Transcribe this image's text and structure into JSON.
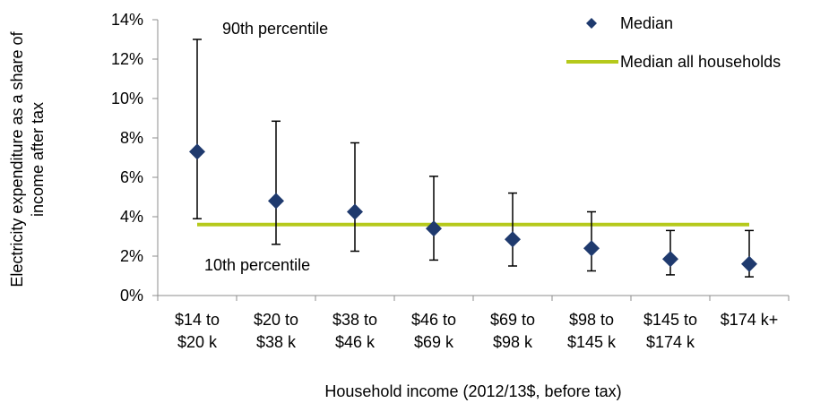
{
  "chart_data": {
    "type": "scatter",
    "ylabel_lines": [
      "Electricity expenditure as a share of",
      "income after tax"
    ],
    "xlabel": "Household income (2012/13$, before tax)",
    "categories": [
      [
        "$14 to",
        "$20 k"
      ],
      [
        "$20 to",
        "$38 k"
      ],
      [
        "$38 to",
        "$46 k"
      ],
      [
        "$46 to",
        "$69 k"
      ],
      [
        "$69 to",
        "$98 k"
      ],
      [
        "$98 to",
        "$145 k"
      ],
      [
        "$145 to",
        "$174 k"
      ],
      [
        "$174 k+"
      ]
    ],
    "ylim": [
      0,
      14
    ],
    "ytick_values": [
      0,
      2,
      4,
      6,
      8,
      10,
      12,
      14
    ],
    "ytick_labels": [
      "0%",
      "2%",
      "4%",
      "6%",
      "8%",
      "10%",
      "12%",
      "14%"
    ],
    "series": [
      {
        "name": "Median",
        "marker": "diamond",
        "color": "#1f3a6e",
        "values": [
          7.3,
          4.8,
          4.25,
          3.4,
          2.85,
          2.4,
          1.85,
          1.6
        ]
      },
      {
        "name": "Median all households",
        "style": "line",
        "color": "#b5c91b",
        "value": 3.6
      }
    ],
    "error_bars": {
      "upper": [
        13.0,
        8.85,
        7.75,
        6.05,
        5.2,
        4.25,
        3.3,
        3.3
      ],
      "lower": [
        3.9,
        2.6,
        2.25,
        1.8,
        1.5,
        1.25,
        1.05,
        0.95
      ]
    },
    "annotations": [
      {
        "text": "90th percentile"
      },
      {
        "text": "10th percentile"
      }
    ],
    "legend_position": "top-right",
    "grid": false
  }
}
